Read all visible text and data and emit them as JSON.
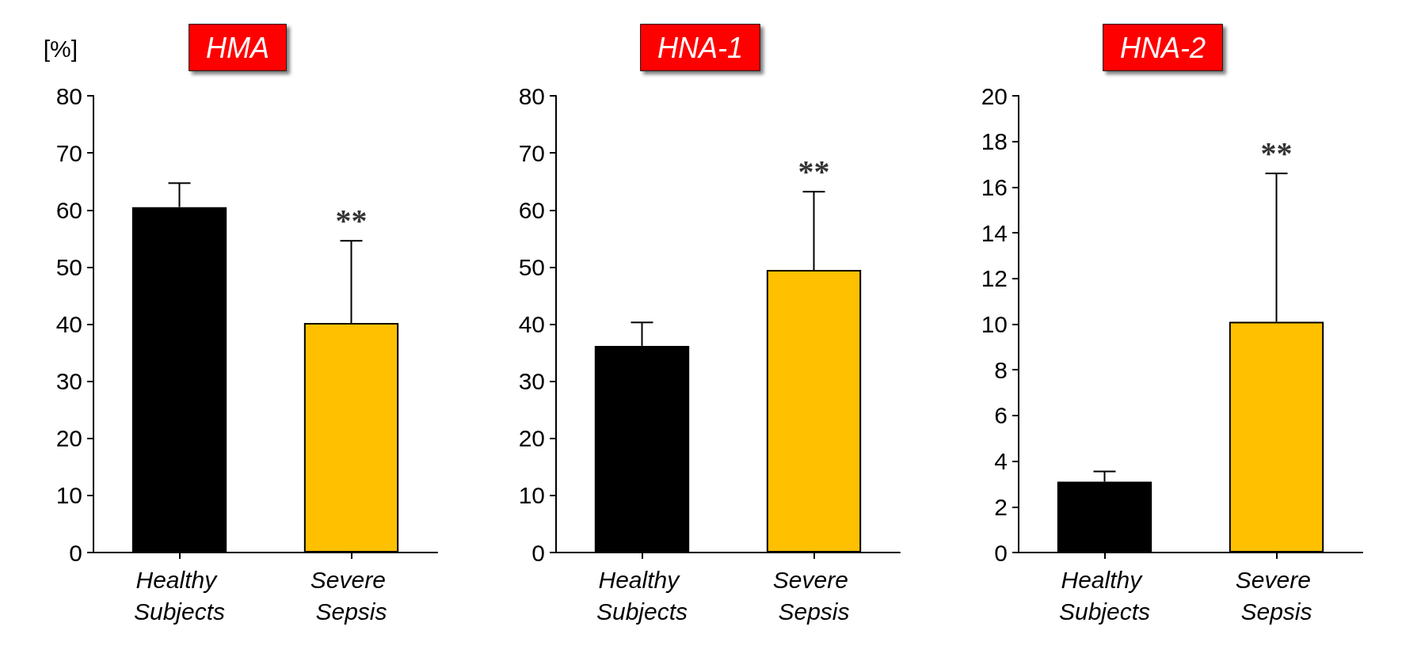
{
  "chart_data": [
    {
      "type": "bar",
      "title": "HMA",
      "ylabel": "[%]",
      "categories": [
        "Healthy Subjects",
        "Severe Sepsis"
      ],
      "values": [
        60.5,
        40.2
      ],
      "colors": [
        "#000000",
        "#ffc000"
      ],
      "errors": [
        [
          60.5,
          64.7
        ],
        [
          40.2,
          54.6
        ]
      ],
      "ylim": [
        0,
        80
      ],
      "yticks": [
        0,
        10,
        20,
        30,
        40,
        50,
        60,
        70,
        80
      ],
      "grid": false,
      "annotations": [
        "**"
      ]
    },
    {
      "type": "bar",
      "title": "HNA-1",
      "categories": [
        "Healthy Subjects",
        "Severe Sepsis"
      ],
      "values": [
        36.2,
        49.5
      ],
      "colors": [
        "#000000",
        "#ffc000"
      ],
      "errors": [
        [
          36.2,
          40.3
        ],
        [
          49.5,
          63.2
        ]
      ],
      "ylim": [
        0,
        80
      ],
      "yticks": [
        0,
        10,
        20,
        30,
        40,
        50,
        60,
        70,
        80
      ],
      "grid": false,
      "annotations": [
        "**"
      ]
    },
    {
      "type": "bar",
      "title": "HNA-2",
      "categories": [
        "Healthy Subjects",
        "Severe Sepsis"
      ],
      "values": [
        3.1,
        10.1
      ],
      "colors": [
        "#000000",
        "#ffc000"
      ],
      "errors": [
        [
          3.1,
          3.55
        ],
        [
          10.1,
          16.6
        ]
      ],
      "ylim": [
        0,
        20
      ],
      "yticks": [
        0,
        2,
        4,
        6,
        8,
        10,
        12,
        14,
        16,
        18,
        20
      ],
      "grid": false,
      "annotations": [
        "**"
      ]
    }
  ]
}
